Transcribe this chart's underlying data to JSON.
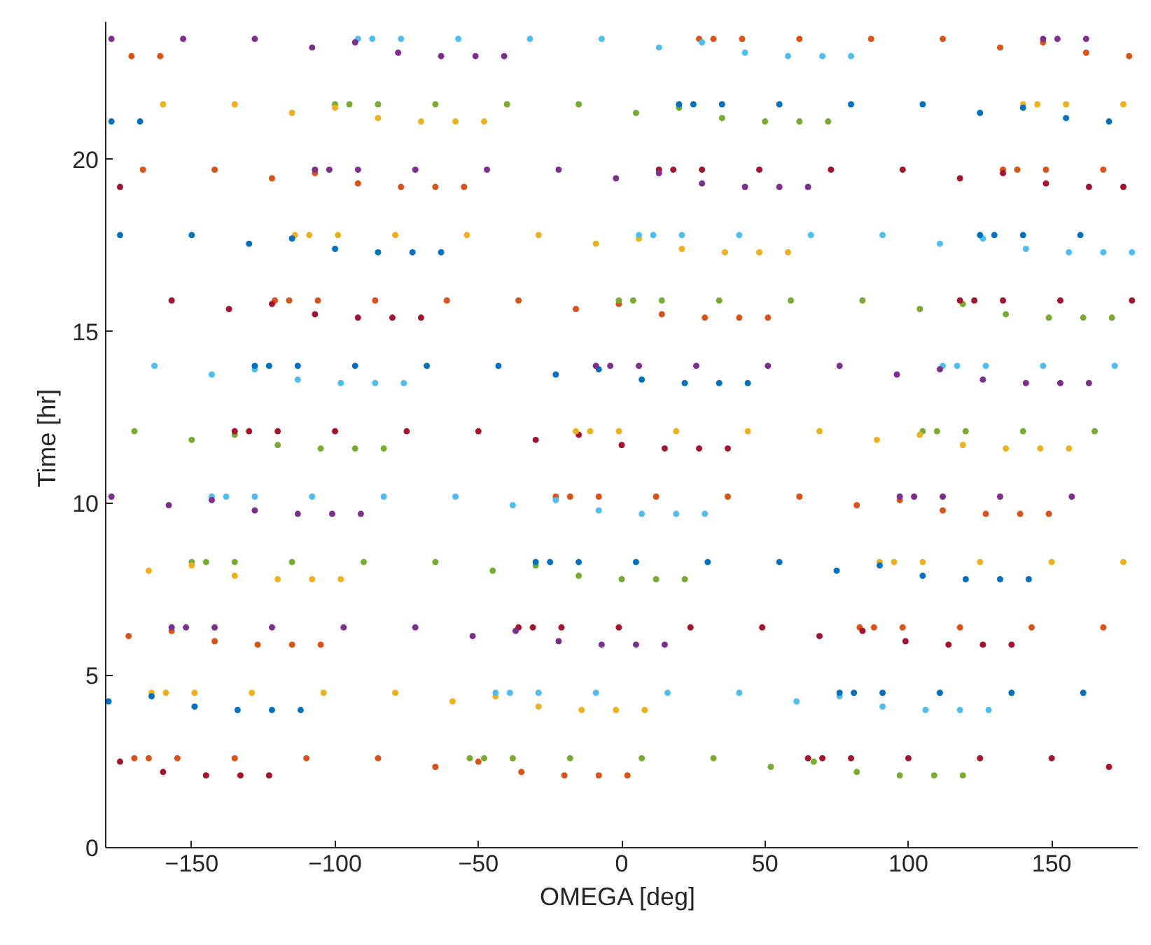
{
  "chart_data": {
    "type": "scatter",
    "xlabel": "OMEGA  [deg]",
    "ylabel": "Time  [hr]",
    "xlim": [
      -180,
      180
    ],
    "ylim": [
      0,
      24
    ],
    "xticks": [
      -150,
      -100,
      -50,
      0,
      50,
      100,
      150
    ],
    "yticks": [
      0,
      5,
      10,
      15,
      20
    ],
    "marker": "circle",
    "series": [
      {
        "color": "#d95319",
        "x": [
          -170,
          -165,
          -155,
          -135,
          -110,
          -85,
          -65,
          -50,
          -35,
          -20,
          -8,
          2,
          83,
          88,
          98,
          118,
          143,
          168,
          -172,
          -157,
          -142,
          -127,
          -115,
          -105,
          -23,
          -18,
          -8,
          12,
          37,
          62,
          82,
          97,
          112,
          127,
          139,
          149,
          -121,
          -116,
          -106,
          -86,
          -61,
          -36,
          -16,
          -1,
          14,
          29,
          41,
          51,
          133,
          138,
          148,
          168,
          -167,
          -142,
          -122,
          -107,
          -92,
          -77,
          -65,
          -55,
          27,
          32,
          42,
          62,
          87,
          112,
          132,
          147,
          162,
          177,
          -171,
          -161
        ],
        "values": [
          2.6,
          2.6,
          2.6,
          2.6,
          2.6,
          2.6,
          2.35,
          2.5,
          2.2,
          2.1,
          2.1,
          2.1,
          6.4,
          6.4,
          6.4,
          6.4,
          6.4,
          6.4,
          6.15,
          6.3,
          6.0,
          5.9,
          5.9,
          5.9,
          10.2,
          10.2,
          10.2,
          10.2,
          10.2,
          10.2,
          9.95,
          10.1,
          9.8,
          9.7,
          9.7,
          9.7,
          15.9,
          15.9,
          15.9,
          15.9,
          15.9,
          15.9,
          15.65,
          15.8,
          15.5,
          15.4,
          15.4,
          15.4,
          19.7,
          19.7,
          19.7,
          19.7,
          19.7,
          19.7,
          19.45,
          19.6,
          19.3,
          19.2,
          19.2,
          19.2,
          23.5,
          23.5,
          23.5,
          23.5,
          23.5,
          23.5,
          23.25,
          23.4,
          23.1,
          23.0,
          23.0,
          23.0
        ]
      },
      {
        "color": "#77ac30",
        "x": [
          -53,
          -48,
          -38,
          -18,
          7,
          32,
          52,
          67,
          82,
          97,
          109,
          119,
          -150,
          -145,
          -135,
          -115,
          -90,
          -65,
          -45,
          -30,
          -15,
          0,
          12,
          22,
          105,
          110,
          120,
          140,
          165,
          -170,
          -150,
          -135,
          -120,
          -105,
          -93,
          -83,
          -1,
          4,
          14,
          34,
          59,
          84,
          104,
          119,
          134,
          149,
          161,
          171,
          -100,
          -95,
          -85,
          -65,
          -40,
          -15,
          5,
          20,
          35,
          50,
          62,
          72
        ],
        "values": [
          2.6,
          2.6,
          2.6,
          2.6,
          2.6,
          2.6,
          2.35,
          2.5,
          2.2,
          2.1,
          2.1,
          2.1,
          8.3,
          8.3,
          8.3,
          8.3,
          8.3,
          8.3,
          8.05,
          8.2,
          7.9,
          7.8,
          7.8,
          7.8,
          12.1,
          12.1,
          12.1,
          12.1,
          12.1,
          12.1,
          11.85,
          12.0,
          11.7,
          11.6,
          11.6,
          11.6,
          15.9,
          15.9,
          15.9,
          15.9,
          15.9,
          15.9,
          15.65,
          15.8,
          15.5,
          15.4,
          15.4,
          15.4,
          21.6,
          21.6,
          21.6,
          21.6,
          21.6,
          21.6,
          21.35,
          21.5,
          21.2,
          21.1,
          21.1,
          21.1
        ]
      },
      {
        "color": "#a2142f",
        "x": [
          65,
          70,
          80,
          100,
          125,
          150,
          170,
          -175,
          -160,
          -145,
          -133,
          -123,
          -36,
          -31,
          -21,
          -1,
          24,
          49,
          69,
          84,
          99,
          114,
          126,
          136,
          -135,
          -130,
          -120,
          -100,
          -75,
          -50,
          -30,
          -15,
          0,
          15,
          27,
          37,
          118,
          123,
          133,
          153,
          178,
          -157,
          -137,
          -122,
          -107,
          -92,
          -80,
          -70,
          13,
          18,
          28,
          48,
          73,
          98,
          118,
          133,
          148,
          163,
          175,
          -175
        ],
        "values": [
          2.6,
          2.6,
          2.6,
          2.6,
          2.6,
          2.6,
          2.35,
          2.5,
          2.2,
          2.1,
          2.1,
          2.1,
          6.4,
          6.4,
          6.4,
          6.4,
          6.4,
          6.4,
          6.15,
          6.3,
          6.0,
          5.9,
          5.9,
          5.9,
          12.1,
          12.1,
          12.1,
          12.1,
          12.1,
          12.1,
          11.85,
          12.0,
          11.7,
          11.6,
          11.6,
          11.6,
          15.9,
          15.9,
          15.9,
          15.9,
          15.9,
          15.9,
          15.65,
          15.8,
          15.5,
          15.4,
          15.4,
          15.4,
          19.7,
          19.7,
          19.7,
          19.7,
          19.7,
          19.7,
          19.45,
          19.6,
          19.3,
          19.2,
          19.2,
          19.2
        ]
      },
      {
        "color": "#edb120",
        "x": [
          -164,
          -159,
          -149,
          -129,
          -104,
          -79,
          -59,
          -44,
          -29,
          -14,
          -2,
          8,
          90,
          95,
          105,
          125,
          150,
          175,
          -165,
          -150,
          -135,
          -120,
          -108,
          -98,
          -16,
          -11,
          -1,
          19,
          44,
          69,
          89,
          104,
          119,
          134,
          146,
          156,
          -114,
          -109,
          -99,
          -79,
          -54,
          -29,
          -9,
          6,
          21,
          36,
          48,
          58,
          140,
          145,
          155,
          175,
          -160,
          -135,
          -115,
          -100,
          -85,
          -70,
          -58,
          -48
        ],
        "values": [
          4.5,
          4.5,
          4.5,
          4.5,
          4.5,
          4.5,
          4.25,
          4.4,
          4.1,
          4.0,
          4.0,
          4.0,
          8.3,
          8.3,
          8.3,
          8.3,
          8.3,
          8.3,
          8.05,
          8.2,
          7.9,
          7.8,
          7.8,
          7.8,
          12.1,
          12.1,
          12.1,
          12.1,
          12.1,
          12.1,
          11.85,
          12.0,
          11.7,
          11.6,
          11.6,
          11.6,
          17.8,
          17.8,
          17.8,
          17.8,
          17.8,
          17.8,
          17.55,
          17.7,
          17.4,
          17.3,
          17.3,
          17.3,
          21.6,
          21.6,
          21.6,
          21.6,
          21.6,
          21.6,
          21.35,
          21.5,
          21.2,
          21.1,
          21.1,
          21.1
        ]
      },
      {
        "color": "#4dbeee",
        "x": [
          -44,
          -39,
          -29,
          -9,
          16,
          41,
          61,
          76,
          91,
          106,
          118,
          128,
          -143,
          -138,
          -128,
          -108,
          -83,
          -58,
          -38,
          -23,
          -8,
          7,
          19,
          29,
          112,
          117,
          127,
          147,
          172,
          -163,
          -143,
          -128,
          -113,
          -98,
          -86,
          -76,
          6,
          11,
          21,
          41,
          66,
          91,
          111,
          126,
          141,
          156,
          168,
          178,
          -92,
          -87,
          -77,
          -57,
          -32,
          -7,
          13,
          28,
          43,
          58,
          70,
          80
        ],
        "values": [
          4.5,
          4.5,
          4.5,
          4.5,
          4.5,
          4.5,
          4.25,
          4.4,
          4.1,
          4.0,
          4.0,
          4.0,
          10.2,
          10.2,
          10.2,
          10.2,
          10.2,
          10.2,
          9.95,
          10.1,
          9.8,
          9.7,
          9.7,
          9.7,
          14.0,
          14.0,
          14.0,
          14.0,
          14.0,
          14.0,
          13.75,
          13.9,
          13.6,
          13.5,
          13.5,
          13.5,
          17.8,
          17.8,
          17.8,
          17.8,
          17.8,
          17.8,
          17.55,
          17.7,
          17.4,
          17.3,
          17.3,
          17.3,
          23.5,
          23.5,
          23.5,
          23.5,
          23.5,
          23.5,
          23.25,
          23.4,
          23.1,
          23.0,
          23.0,
          23.0
        ]
      },
      {
        "color": "#0072bd",
        "x": [
          76,
          81,
          91,
          111,
          136,
          161,
          -179,
          -164,
          -149,
          -134,
          -122,
          -112,
          -30,
          -25,
          -15,
          5,
          30,
          55,
          75,
          90,
          105,
          120,
          132,
          142,
          -128,
          -123,
          -113,
          -93,
          -68,
          -43,
          -23,
          -8,
          7,
          22,
          34,
          44,
          125,
          130,
          140,
          160,
          -175,
          -150,
          -130,
          -115,
          -100,
          -85,
          -73,
          -63,
          20,
          25,
          35,
          55,
          80,
          105,
          125,
          140,
          155,
          170,
          -178,
          -168
        ],
        "values": [
          4.5,
          4.5,
          4.5,
          4.5,
          4.5,
          4.5,
          4.25,
          4.4,
          4.1,
          4.0,
          4.0,
          4.0,
          8.3,
          8.3,
          8.3,
          8.3,
          8.3,
          8.3,
          8.05,
          8.2,
          7.9,
          7.8,
          7.8,
          7.8,
          14.0,
          14.0,
          14.0,
          14.0,
          14.0,
          14.0,
          13.75,
          13.9,
          13.6,
          13.5,
          13.5,
          13.5,
          17.8,
          17.8,
          17.8,
          17.8,
          17.8,
          17.8,
          17.55,
          17.7,
          17.4,
          17.3,
          17.3,
          17.3,
          21.6,
          21.6,
          21.6,
          21.6,
          21.6,
          21.6,
          21.35,
          21.5,
          21.2,
          21.1,
          21.1,
          21.1
        ]
      },
      {
        "color": "#7e2f8e",
        "x": [
          -157,
          -152,
          -142,
          -122,
          -97,
          -72,
          -52,
          -37,
          -22,
          -7,
          5,
          15,
          97,
          102,
          112,
          132,
          157,
          -178,
          -158,
          -143,
          -128,
          -113,
          -101,
          -91,
          -9,
          -4,
          6,
          26,
          51,
          76,
          96,
          111,
          126,
          141,
          153,
          163,
          -107,
          -102,
          -92,
          -72,
          -47,
          -22,
          -2,
          13,
          28,
          43,
          55,
          65,
          147,
          152,
          162,
          -178,
          -153,
          -128,
          -108,
          -93,
          -78,
          -63,
          -51,
          -41
        ],
        "values": [
          6.4,
          6.4,
          6.4,
          6.4,
          6.4,
          6.4,
          6.15,
          6.3,
          6.0,
          5.9,
          5.9,
          5.9,
          10.2,
          10.2,
          10.2,
          10.2,
          10.2,
          10.2,
          9.95,
          10.1,
          9.8,
          9.7,
          9.7,
          9.7,
          14.0,
          14.0,
          14.0,
          14.0,
          14.0,
          14.0,
          13.75,
          13.9,
          13.6,
          13.5,
          13.5,
          13.5,
          19.7,
          19.7,
          19.7,
          19.7,
          19.7,
          19.7,
          19.45,
          19.6,
          19.3,
          19.2,
          19.2,
          19.2,
          23.5,
          23.5,
          23.5,
          23.5,
          23.5,
          23.5,
          23.25,
          23.4,
          23.1,
          23.0,
          23.0,
          23.0
        ]
      }
    ]
  }
}
